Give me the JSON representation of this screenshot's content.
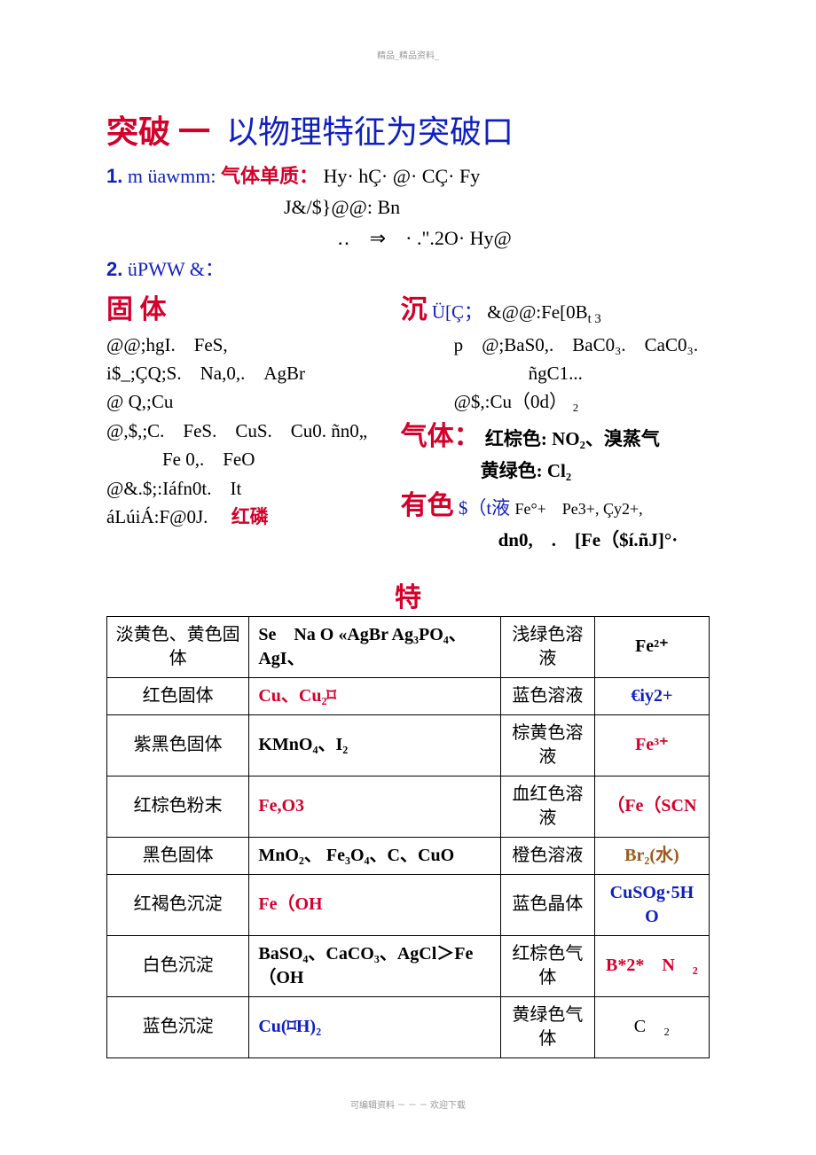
{
  "top_note": "精品_精品资料_",
  "bottom_note": "可编辑资料 － － － 欢迎下载",
  "title": {
    "red": "突破  一",
    "blue": "以物理特征为突破口"
  },
  "line1": {
    "num": "1.",
    "label": "m üawmm:",
    "kai": "气体单质：",
    "rest": "Hy· hÇ· @· CÇ· Fy"
  },
  "line1b": "J&/$}@@: Bn",
  "line1c": "‥　⇒　· .\".2O· Hy@",
  "line2": {
    "num": "2.",
    "label": "üPWW &："
  },
  "left": {
    "head": "固 体",
    "l1": "@@;hgI.　FeS,",
    "l2": "i$_;ÇQ;S.　Na,0,.　AgBr",
    "l3": "@ Q,;Cu",
    "l4": "@,$,;C.　FeS.　CuS.　Cu0. ñn0„",
    "l5": "　　　Fe 0,.　FeO",
    "l6": "@&.$;:Iáfn0t.　It",
    "l7": "áLúiÁ:F@0J.　",
    "l7kai": "红磷"
  },
  "right": {
    "head": "沉",
    "r1a": "Ü[Ç；",
    "r1b": "&@@:Fe[0B",
    "r1sub": "t 3",
    "r2": "p　@;BaS0,.　BaC0₃.　CaC0₃.",
    "r3": "　　　　ñgC1...",
    "r4": "@$,:Cu（0d） ₂",
    "gas_head": "气体：",
    "gas1": "红棕色: NO₂、溴蒸气",
    "gas2": "黄绿色: Cl₂",
    "sol_head": "有色",
    "sol_mid": "$（t液",
    "sol1": "Fe°+　Pe3+, Çy2+,",
    "sol2": "dn0,　.　[Fe（$í.ñJ]°·"
  },
  "table_head": "特",
  "table": {
    "rows": [
      {
        "c1": "淡黄色、黄色固体",
        "c2": "Se　Na O «AgBr Ag₃PO₄、 AgI、",
        "c2_class": "bold",
        "c3": "浅绿色溶液",
        "c4": "Fe²⁺",
        "c4_class": "bold"
      },
      {
        "c1": "红色固体",
        "c2": "Cu、Cu₂⌑",
        "c2_class": "redc",
        "c3": "蓝色溶液",
        "c4": "€iy2+",
        "c4_class": "bluec"
      },
      {
        "c1": "紫黑色固体",
        "c2": "KMnO₄、I₂",
        "c2_class": "bold",
        "c3": "棕黄色溶液",
        "c4": "Fe³⁺",
        "c4_class": "redc"
      },
      {
        "c1": "红棕色粉末",
        "c2": "Fe,O3",
        "c2_class": "redc",
        "c3": "血红色溶液",
        "c4": "（Fe（SCN",
        "c4_class": "redc"
      },
      {
        "c1": "黑色固体",
        "c2": "MnO₂、 Fe₃O₄、C、CuO",
        "c2_class": "bold",
        "c3": "橙色溶液",
        "c4": "Br₂(水)",
        "c4_class": "brownc"
      },
      {
        "c1": "红褐色沉淀",
        "c2": "Fe（OH",
        "c2_class": "redc",
        "c3": "蓝色晶体",
        "c4": "CuSOg·5H O",
        "c4_class": "bluec"
      },
      {
        "c1": "白色沉淀",
        "c2": "BaSO₄、CaCO₃、AgCl＞Fe（OH",
        "c2_class": "bold",
        "c3": "红棕色气体",
        "c4": "B*2*　N　₂",
        "c4_class": "redc"
      },
      {
        "c1": "蓝色沉淀",
        "c2": "Cu(⌑H)₂",
        "c2_class": "bluec",
        "c3": "黄绿色气体",
        "c4": "C　₂",
        "c4_class": ""
      }
    ]
  }
}
